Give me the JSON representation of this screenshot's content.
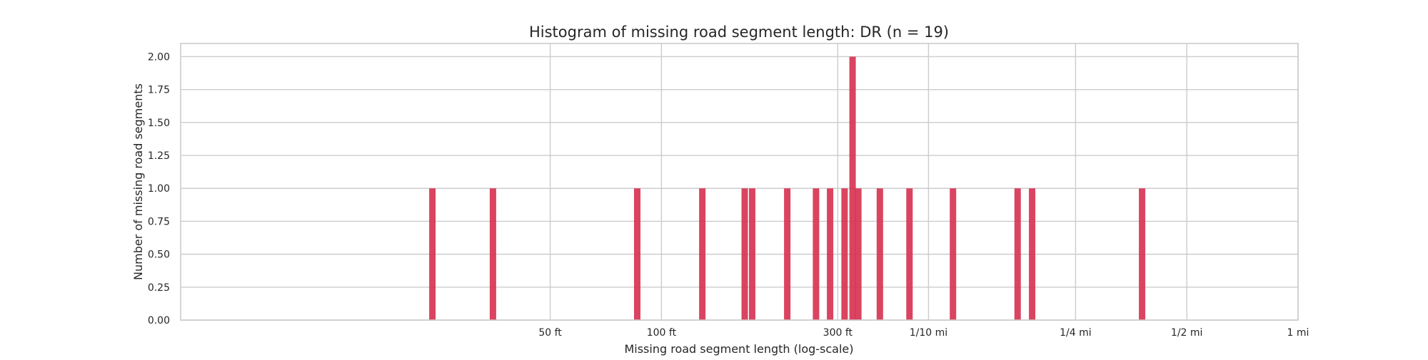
{
  "chart_data": {
    "type": "bar",
    "title": "Histogram of missing road segment length: DR (n = 19)",
    "xlabel": "Missing road segment  length (log-scale)",
    "ylabel": "Number of missing road segments",
    "x_scale": "log",
    "x_unit": "ft",
    "xlim": [
      5.0,
      5280
    ],
    "ylim": [
      0,
      2.1
    ],
    "grid": true,
    "bar_color": "#d6304f",
    "x_ticks": [
      {
        "value": 50,
        "label": "50 ft"
      },
      {
        "value": 100,
        "label": "100 ft"
      },
      {
        "value": 300,
        "label": "300 ft"
      },
      {
        "value": 528,
        "label": "1/10 mi"
      },
      {
        "value": 1320,
        "label": "1/4 mi"
      },
      {
        "value": 2640,
        "label": "1/2 mi"
      },
      {
        "value": 5280,
        "label": "1 mi"
      }
    ],
    "y_ticks": [
      {
        "value": 0,
        "label": "0.00"
      },
      {
        "value": 0.25,
        "label": "0.25"
      },
      {
        "value": 0.5,
        "label": "0.50"
      },
      {
        "value": 0.75,
        "label": "0.75"
      },
      {
        "value": 1.0,
        "label": "1.00"
      },
      {
        "value": 1.25,
        "label": "1.25"
      },
      {
        "value": 1.5,
        "label": "1.50"
      },
      {
        "value": 1.75,
        "label": "1.75"
      },
      {
        "value": 2.0,
        "label": "2.00"
      }
    ],
    "bars": [
      {
        "x": 24,
        "count": 1
      },
      {
        "x": 35,
        "count": 1
      },
      {
        "x": 86,
        "count": 1
      },
      {
        "x": 129,
        "count": 1
      },
      {
        "x": 168,
        "count": 1
      },
      {
        "x": 176,
        "count": 1
      },
      {
        "x": 219,
        "count": 1
      },
      {
        "x": 262,
        "count": 1
      },
      {
        "x": 286,
        "count": 1
      },
      {
        "x": 313,
        "count": 1
      },
      {
        "x": 329,
        "count": 2
      },
      {
        "x": 341,
        "count": 1
      },
      {
        "x": 390,
        "count": 1
      },
      {
        "x": 469,
        "count": 1
      },
      {
        "x": 615,
        "count": 1
      },
      {
        "x": 920,
        "count": 1
      },
      {
        "x": 1007,
        "count": 1
      },
      {
        "x": 1998,
        "count": 1
      }
    ]
  }
}
